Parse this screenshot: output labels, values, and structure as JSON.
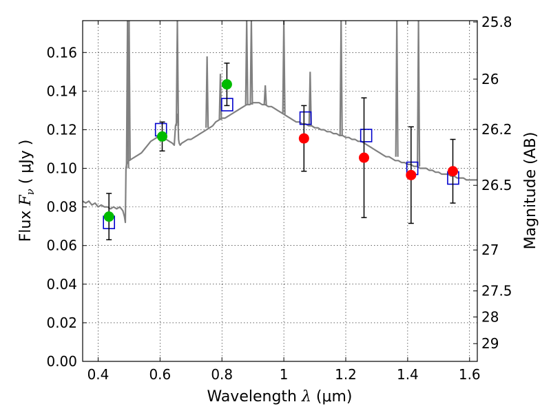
{
  "chart_data": {
    "type": "scatter",
    "title": "",
    "xlabel": {
      "prefix": "Wavelength  ",
      "symbol": "λ",
      "units": " (μm)"
    },
    "ylabel": {
      "prefix": "Flux  ",
      "symbol": "F",
      "subscript": "ν",
      "units": "  ( μJy )"
    },
    "y2label": "Magnitude (AB)",
    "xlim": [
      0.35,
      1.625
    ],
    "ylim": [
      0.0,
      0.1765
    ],
    "grid": true,
    "grid_style": "dotted",
    "x_ticks": [
      0.4,
      0.6,
      0.8,
      1.0,
      1.2,
      1.4,
      1.6
    ],
    "x_tick_labels": [
      "0.4",
      "0.6",
      "0.8",
      "1",
      "1.2",
      "1.4",
      "1.6"
    ],
    "y_ticks": [
      0.0,
      0.02,
      0.04,
      0.06,
      0.08,
      0.1,
      0.12,
      0.14,
      0.16
    ],
    "y_tick_labels": [
      "0.00",
      "0.02",
      "0.04",
      "0.06",
      "0.08",
      "0.10",
      "0.12",
      "0.14",
      "0.16"
    ],
    "y2_ticks": [
      {
        "label": "25.8",
        "flux": 0.1758
      },
      {
        "label": "26",
        "flux": 0.1462
      },
      {
        "label": "26.2",
        "flux": 0.1202
      },
      {
        "label": "26.5",
        "flux": 0.0912
      },
      {
        "label": "27",
        "flux": 0.0577
      },
      {
        "label": "27.5",
        "flux": 0.0365
      },
      {
        "label": "28",
        "flux": 0.023
      },
      {
        "label": "29",
        "flux": 0.0092
      }
    ],
    "series": [
      {
        "kind": "line",
        "color": "#808080",
        "x": [
          0.35,
          0.36,
          0.37,
          0.38,
          0.39,
          0.4,
          0.41,
          0.42,
          0.43,
          0.44,
          0.45,
          0.46,
          0.47,
          0.48,
          0.485,
          0.488,
          0.49,
          0.492,
          0.495,
          0.498,
          0.5,
          0.51,
          0.52,
          0.53,
          0.54,
          0.55,
          0.56,
          0.57,
          0.58,
          0.59,
          0.6,
          0.61,
          0.62,
          0.63,
          0.64,
          0.646,
          0.65,
          0.654,
          0.656,
          0.658,
          0.66,
          0.662,
          0.665,
          0.67,
          0.68,
          0.69,
          0.7,
          0.71,
          0.72,
          0.73,
          0.74,
          0.75,
          0.76,
          0.77,
          0.78,
          0.79,
          0.8,
          0.81,
          0.82,
          0.83,
          0.84,
          0.85,
          0.86,
          0.87,
          0.88,
          0.89,
          0.9,
          0.91,
          0.92,
          0.93,
          0.94,
          0.95,
          0.96,
          0.97,
          0.98,
          0.99,
          1.0,
          1.01,
          1.02,
          1.03,
          1.04,
          1.05,
          1.06,
          1.07,
          1.08,
          1.09,
          1.1,
          1.11,
          1.12,
          1.13,
          1.14,
          1.15,
          1.16,
          1.17,
          1.18,
          1.19,
          1.2,
          1.21,
          1.22,
          1.23,
          1.24,
          1.25,
          1.26,
          1.27,
          1.28,
          1.29,
          1.3,
          1.31,
          1.32,
          1.33,
          1.34,
          1.35,
          1.36,
          1.37,
          1.38,
          1.39,
          1.4,
          1.41,
          1.42,
          1.43,
          1.44,
          1.45,
          1.46,
          1.47,
          1.48,
          1.49,
          1.5,
          1.51,
          1.52,
          1.53,
          1.54,
          1.55,
          1.56,
          1.57,
          1.58,
          1.59,
          1.6,
          1.61,
          1.625
        ],
        "y": [
          0.083,
          0.082,
          0.083,
          0.081,
          0.082,
          0.08,
          0.081,
          0.08,
          0.08,
          0.079,
          0.08,
          0.079,
          0.08,
          0.078,
          0.075,
          0.072,
          0.1,
          0.102,
          0.103,
          0.104,
          0.104,
          0.105,
          0.106,
          0.107,
          0.108,
          0.11,
          0.112,
          0.114,
          0.115,
          0.116,
          0.117,
          0.116,
          0.115,
          0.114,
          0.113,
          0.112,
          0.122,
          0.124,
          0.128,
          0.125,
          0.115,
          0.113,
          0.112,
          0.113,
          0.114,
          0.115,
          0.115,
          0.116,
          0.117,
          0.118,
          0.119,
          0.12,
          0.121,
          0.122,
          0.124,
          0.125,
          0.126,
          0.126,
          0.127,
          0.128,
          0.129,
          0.13,
          0.131,
          0.132,
          0.133,
          0.133,
          0.134,
          0.134,
          0.134,
          0.133,
          0.133,
          0.132,
          0.132,
          0.131,
          0.13,
          0.129,
          0.128,
          0.127,
          0.126,
          0.125,
          0.124,
          0.124,
          0.123,
          0.123,
          0.122,
          0.122,
          0.121,
          0.121,
          0.12,
          0.12,
          0.119,
          0.119,
          0.118,
          0.118,
          0.117,
          0.117,
          0.116,
          0.116,
          0.115,
          0.115,
          0.114,
          0.114,
          0.113,
          0.112,
          0.111,
          0.11,
          0.109,
          0.108,
          0.107,
          0.106,
          0.106,
          0.105,
          0.104,
          0.104,
          0.103,
          0.103,
          0.102,
          0.102,
          0.101,
          0.101,
          0.1,
          0.1,
          0.1,
          0.099,
          0.099,
          0.098,
          0.098,
          0.097,
          0.097,
          0.097,
          0.096,
          0.096,
          0.095,
          0.095,
          0.095,
          0.094,
          0.094,
          0.094,
          0.094
        ]
      },
      {
        "kind": "line-spikes",
        "color": "#808080",
        "spikes": [
          {
            "x": 0.495,
            "base": 0.1,
            "top": 0.1765
          },
          {
            "x": 0.5,
            "base": 0.104,
            "top": 0.1765
          },
          {
            "x": 0.656,
            "base": 0.122,
            "top": 0.1765
          },
          {
            "x": 0.752,
            "base": 0.121,
            "top": 0.158
          },
          {
            "x": 0.795,
            "base": 0.125,
            "top": 0.149
          },
          {
            "x": 0.88,
            "base": 0.133,
            "top": 0.1765
          },
          {
            "x": 0.895,
            "base": 0.133,
            "top": 0.1765
          },
          {
            "x": 0.94,
            "base": 0.133,
            "top": 0.143
          },
          {
            "x": 1.0,
            "base": 0.128,
            "top": 0.1765
          },
          {
            "x": 1.085,
            "base": 0.122,
            "top": 0.15
          },
          {
            "x": 1.185,
            "base": 0.117,
            "top": 0.1765
          },
          {
            "x": 1.365,
            "base": 0.106,
            "top": 0.1765
          },
          {
            "x": 1.435,
            "base": 0.101,
            "top": 0.1765
          }
        ]
      },
      {
        "kind": "squares",
        "color": "#0000cc",
        "x": [
          0.435,
          0.603,
          0.817,
          1.07,
          1.266,
          1.415,
          1.547
        ],
        "y": [
          0.072,
          0.12,
          0.133,
          0.126,
          0.117,
          0.1,
          0.095
        ]
      },
      {
        "kind": "points",
        "color": "#00bb00",
        "x": [
          0.435,
          0.607,
          0.816
        ],
        "y": [
          0.075,
          0.1165,
          0.1435
        ],
        "yerr": [
          0.012,
          0.0075,
          0.011
        ]
      },
      {
        "kind": "points",
        "color": "#ff0000",
        "x": [
          1.065,
          1.259,
          1.411,
          1.546
        ],
        "y": [
          0.1155,
          0.1055,
          0.0965,
          0.0985
        ],
        "yerr": [
          0.017,
          0.031,
          0.025,
          0.0165
        ]
      }
    ]
  }
}
